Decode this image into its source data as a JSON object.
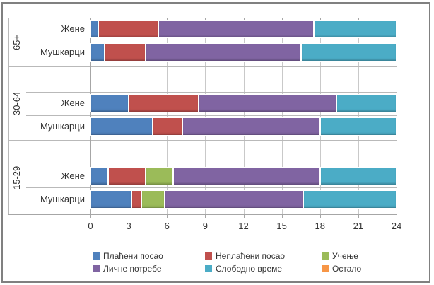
{
  "chart_data": {
    "type": "bar",
    "variant": "horizontal-stacked",
    "title": "",
    "xlabel": "",
    "ylabel": "",
    "xlim": [
      0,
      24
    ],
    "xticks": [
      0,
      3,
      6,
      9,
      12,
      15,
      18,
      21,
      24
    ],
    "grid": true,
    "legend_position": "bottom",
    "categories": [
      {
        "group": "65+",
        "label": "Жене"
      },
      {
        "group": "65+",
        "label": "Мушкарци"
      },
      {
        "group": "30-64",
        "label": "Жене"
      },
      {
        "group": "30-64",
        "label": "Мушкарци"
      },
      {
        "group": "15-29",
        "label": "Жене"
      },
      {
        "group": "15-29",
        "label": "Мушкарци"
      }
    ],
    "series": [
      {
        "name": "Плаћени посао",
        "color": "#4F81BD",
        "values": [
          0.6,
          1.1,
          3.0,
          4.9,
          1.4,
          3.2
        ]
      },
      {
        "name": "Неплаћени посао",
        "color": "#C0504D",
        "values": [
          4.7,
          3.2,
          5.5,
          2.3,
          2.9,
          0.8
        ]
      },
      {
        "name": "Учење",
        "color": "#9BBB59",
        "values": [
          0,
          0,
          0,
          0,
          2.2,
          1.8
        ]
      },
      {
        "name": "Личне потребе",
        "color": "#8064A2",
        "values": [
          12.2,
          12.2,
          10.8,
          10.8,
          11.5,
          10.9
        ]
      },
      {
        "name": "Слободно време",
        "color": "#4BACC6",
        "values": [
          6.5,
          7.5,
          4.7,
          6.0,
          6.0,
          7.3
        ]
      },
      {
        "name": "Остало",
        "color": "#F79646",
        "values": [
          0,
          0,
          0,
          0,
          0,
          0
        ]
      }
    ],
    "legend_items": [
      "Плаћени посао",
      "Неплаћени посао",
      "Учење",
      "Личне потребе",
      "Слободно време",
      "Остало"
    ]
  },
  "colors": {
    "grid": "#c9c9c9",
    "axis": "#a6a6a6",
    "text": "#333333",
    "frame_border": "#808080",
    "background": "#ffffff"
  }
}
